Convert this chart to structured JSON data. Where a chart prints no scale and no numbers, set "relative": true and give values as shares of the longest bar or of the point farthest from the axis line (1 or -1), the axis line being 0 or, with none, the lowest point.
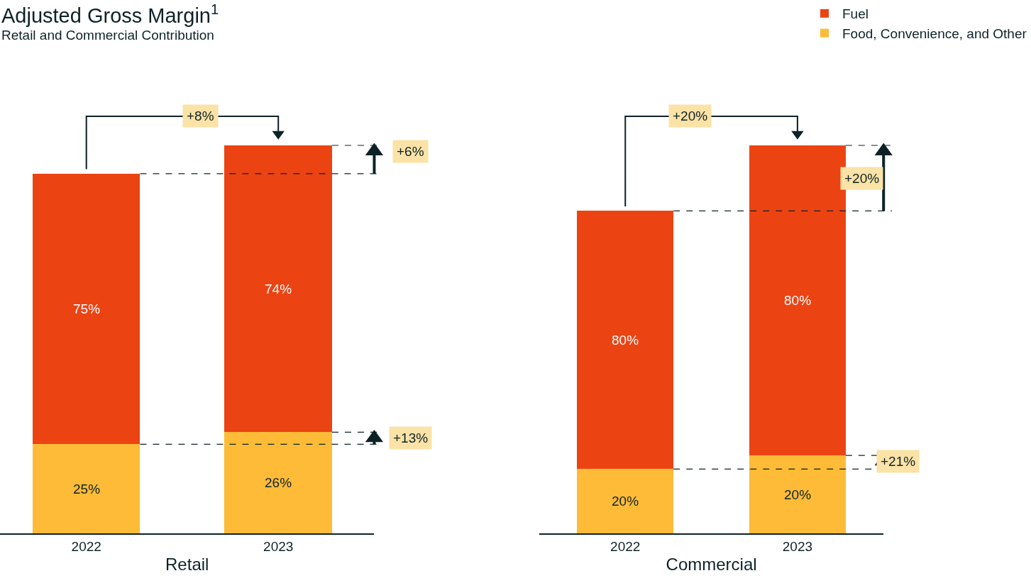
{
  "chart_data": [
    {
      "type": "bar",
      "title": "Adjusted Gross Margin$^{1}$",
      "subtitle": "Retail and Commercial Contribution",
      "xlabel": "Retail",
      "categories": [
        "2022",
        "2023"
      ],
      "stacked": true,
      "relative": true,
      "legend": "top right",
      "series": [
        {
          "name": "Food, Convenience, and Other",
          "color": "#fdbb37",
          "values": [
            0.23,
            0.261
          ]
        },
        {
          "name": "Fuel",
          "color": "#ec4313",
          "values": [
            0.697,
            0.739
          ]
        }
      ],
      "annotations": [
        "+8%",
        "+6%",
        "+13%",
        "25%",
        "75%",
        "26%",
        "74%"
      ],
      "ref_lines": [
        {
          "axis": "y",
          "value": 0.927,
          "line_style": "dashed",
          "color": "#0d2226"
        },
        {
          "axis": "y",
          "value": 0.23,
          "line_style": "dashed",
          "color": "#0d2226"
        }
      ]
    },
    {
      "type": "bar",
      "xlabel": "Commercial",
      "categories": [
        "2022",
        "2023"
      ],
      "stacked": true,
      "relative": true,
      "series": [
        {
          "color": "#fdbb37",
          "values": [
            0.166,
            0.201
          ]
        },
        {
          "color": "#ec4313",
          "values": [
            0.665,
            0.799
          ]
        }
      ],
      "annotations": [
        "+20%",
        "+20%",
        "+21%",
        "20%",
        "80%",
        "20%",
        "80%"
      ],
      "ref_lines": [
        {
          "axis": "y",
          "value": 0.831,
          "line_style": "dashed",
          "color": "#0d2226"
        },
        {
          "axis": "y",
          "value": 0.166,
          "line_style": "dashed",
          "color": "#0d2226"
        }
      ]
    }
  ]
}
